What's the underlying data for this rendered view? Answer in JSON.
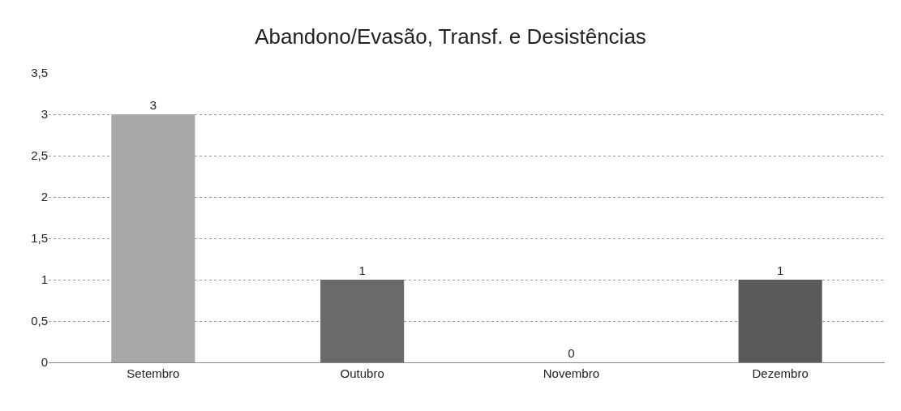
{
  "chart_data": {
    "type": "bar",
    "title": "Abandono/Evasão, Transf. e Desistências",
    "categories": [
      "Setembro",
      "Outubro",
      "Novembro",
      "Dezembro"
    ],
    "values": [
      3,
      1,
      0,
      1
    ],
    "colors": [
      "#a8a8a8",
      "#6a6a6a",
      "#808080",
      "#5a5a5a"
    ],
    "ylim": [
      0,
      3.5
    ],
    "yticks": [
      0,
      {
        "value": 0.5,
        "label": "0,5"
      },
      1,
      {
        "value": 1.5,
        "label": "1,5"
      },
      2,
      {
        "value": 2.5,
        "label": "2,5"
      },
      3,
      {
        "value": 3.5,
        "label": "3,5"
      }
    ],
    "grid": "y",
    "data_labels": true,
    "legend": false
  }
}
